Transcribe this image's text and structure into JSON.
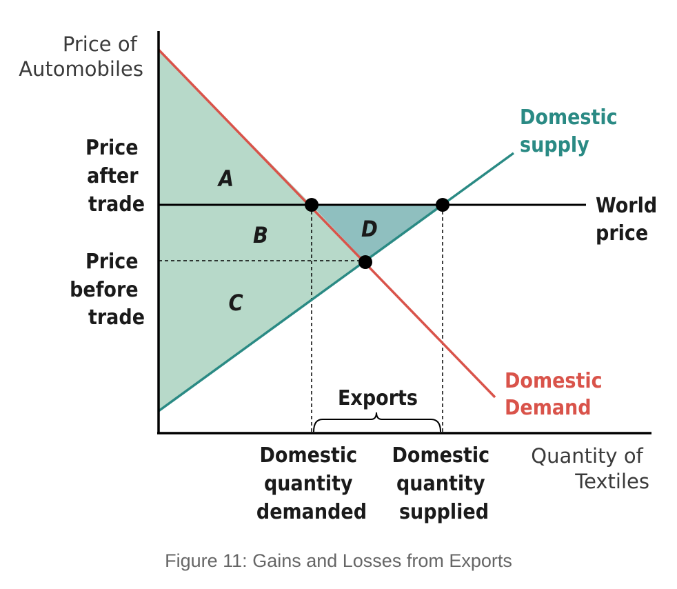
{
  "axes": {
    "y_label": [
      "Price of",
      "Automobiles"
    ],
    "x_label": [
      "Quantity of",
      "Textiles"
    ]
  },
  "price_labels": {
    "after_trade": [
      "Price",
      "after",
      "trade"
    ],
    "before_trade": [
      "Price",
      "before",
      "trade"
    ]
  },
  "curves": {
    "supply": [
      "Domestic",
      "supply"
    ],
    "demand": [
      "Domestic",
      "Demand"
    ],
    "world_price": [
      "World",
      "price"
    ]
  },
  "areas": {
    "a": "A",
    "b": "B",
    "c": "C",
    "d": "D"
  },
  "quantities": {
    "demanded": [
      "Domestic",
      "quantity",
      "demanded"
    ],
    "supplied": [
      "Domestic",
      "quantity",
      "supplied"
    ]
  },
  "exports_label": "Exports",
  "caption": "Figure 11: Gains and Losses from Exports",
  "colors": {
    "supply": "#2a8a84",
    "demand": "#d9534a",
    "surplus_fill": "#b7d9c9",
    "gain_fill": "#8fbfbf",
    "axis": "#000000"
  }
}
